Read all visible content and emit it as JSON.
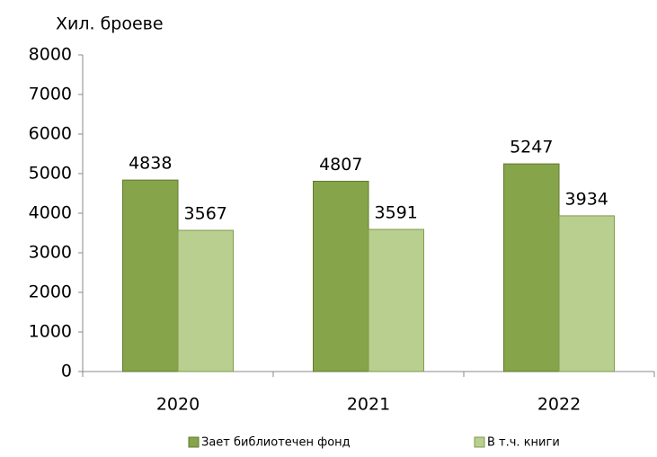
{
  "chart_data": {
    "type": "bar",
    "y_label": "Хил. броеве",
    "categories": [
      "2020",
      "2021",
      "2022"
    ],
    "series": [
      {
        "name": "Зает библиотечен фонд",
        "color": "#86a44a",
        "stroke": "#5f7a2c",
        "values": [
          4838,
          4807,
          5247
        ]
      },
      {
        "name": "В т.ч. книги",
        "color": "#b9cf8f",
        "stroke": "#7f9a4d",
        "values": [
          3567,
          3591,
          3934
        ]
      }
    ],
    "ylim": [
      0,
      8000
    ],
    "yticks": [
      0,
      1000,
      2000,
      3000,
      4000,
      5000,
      6000,
      7000,
      8000
    ],
    "legend": "bottom",
    "grid": false
  }
}
